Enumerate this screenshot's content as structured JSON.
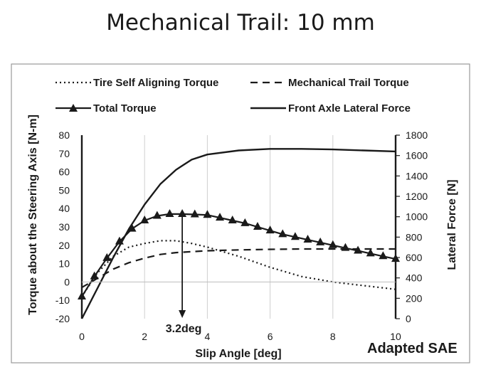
{
  "title": "Mechanical Trail: 10 mm",
  "credit": "Adapted SAE",
  "chart_data": {
    "type": "line",
    "title": "Mechanical Trail: 10 mm",
    "xlabel": "Slip Angle [deg]",
    "ylabel": "Torque about the Steering Axis [N-m]",
    "y2label": "Lateral Force [N]",
    "xlim": [
      0,
      10
    ],
    "ylim": [
      -20,
      80
    ],
    "y2lim": [
      0,
      1800
    ],
    "x_ticks": [
      "0",
      "2",
      "4",
      "6",
      "8",
      "10"
    ],
    "y_ticks": [
      "-20",
      "-10",
      "0",
      "10",
      "20",
      "30",
      "40",
      "50",
      "60",
      "70",
      "80"
    ],
    "y2_ticks": [
      "0",
      "200",
      "400",
      "600",
      "800",
      "1000",
      "1200",
      "1400",
      "1600",
      "1800"
    ],
    "legend": {
      "tire_self_aligning_torque": "Tire Self Aligning Torque",
      "mechanical_trail_torque": "Mechanical Trail Torque",
      "total_torque": "Total Torque",
      "front_axle_lateral_force": "Front Axle Lateral Force"
    },
    "grid": "vertical",
    "annotation": {
      "label": "3.2deg",
      "x": 3.2
    },
    "series": [
      {
        "name": "Tire Self Aligning Torque",
        "axis": "left",
        "style": "dotted",
        "x": [
          0,
          0.5,
          1,
          1.5,
          2,
          2.5,
          3,
          3.5,
          4,
          5,
          6,
          7,
          8,
          9,
          10
        ],
        "y": [
          -8,
          5,
          14,
          19,
          21,
          22.5,
          22.5,
          21,
          19,
          14,
          8,
          3,
          0,
          -2,
          -4
        ]
      },
      {
        "name": "Mechanical Trail Torque",
        "axis": "left",
        "style": "dashed",
        "x": [
          0,
          0.5,
          1,
          1.5,
          2,
          2.5,
          3,
          3.5,
          4,
          5,
          6,
          7,
          8,
          9,
          10
        ],
        "y": [
          -3,
          2,
          7,
          10.5,
          13,
          15,
          16,
          16.5,
          17,
          17.5,
          17.8,
          18,
          18,
          18,
          18
        ]
      },
      {
        "name": "Total Torque",
        "axis": "left",
        "style": "solid-triangle",
        "x": [
          0,
          0.4,
          0.8,
          1.2,
          1.6,
          2.0,
          2.4,
          2.8,
          3.2,
          3.6,
          4.0,
          4.4,
          4.8,
          5.2,
          5.6,
          6.0,
          6.4,
          6.8,
          7.2,
          7.6,
          8.0,
          8.4,
          8.8,
          9.2,
          9.6,
          10.0
        ],
        "y": [
          -8,
          3,
          13,
          22,
          29,
          33.5,
          36,
          37,
          37,
          36.8,
          36.5,
          35,
          33.5,
          32,
          30,
          28,
          26,
          24.5,
          23,
          21.5,
          20,
          18.5,
          17,
          15.5,
          14,
          12.5
        ]
      },
      {
        "name": "Front Axle Lateral Force",
        "axis": "right",
        "style": "solid",
        "x": [
          0,
          0.5,
          1,
          1.5,
          2,
          2.5,
          3,
          3.5,
          4,
          5,
          6,
          7,
          8,
          9,
          10
        ],
        "y": [
          0,
          300,
          600,
          880,
          1120,
          1320,
          1460,
          1560,
          1610,
          1650,
          1665,
          1665,
          1660,
          1650,
          1640
        ]
      }
    ]
  }
}
